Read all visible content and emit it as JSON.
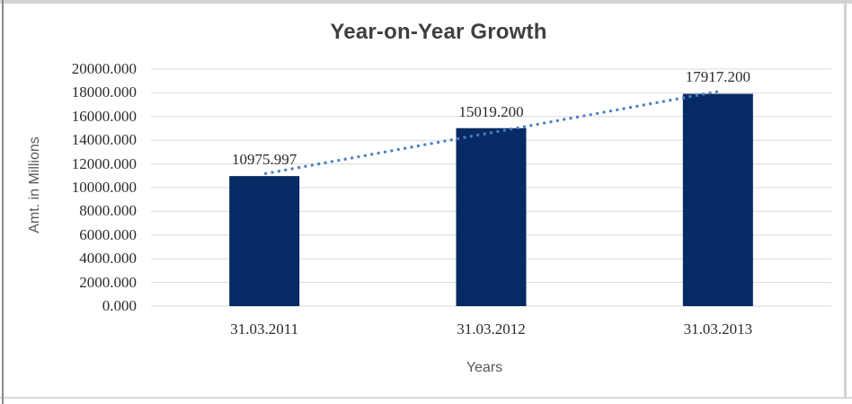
{
  "chart_data": {
    "type": "bar",
    "title": "Year-on-Year Growth",
    "xlabel": "Years",
    "ylabel": "Amt. in Millions",
    "categories": [
      "31.03.2011",
      "31.03.2012",
      "31.03.2013"
    ],
    "values": [
      10975.997,
      15019.2,
      17917.2
    ],
    "data_labels": [
      "10975.997",
      "15019.200",
      "17917.200"
    ],
    "ylim": [
      0,
      20000
    ],
    "ytick_step": 2000,
    "ytick_labels": [
      "0.000",
      "2000.000",
      "4000.000",
      "6000.000",
      "8000.000",
      "10000.000",
      "12000.000",
      "14000.000",
      "16000.000",
      "18000.000",
      "20000.000"
    ],
    "grid": true,
    "legend": false,
    "trendline": {
      "type": "linear",
      "style": "dotted",
      "color": "#4A80C0"
    },
    "colors": {
      "bar": "#062A64",
      "gridline": "#D9D9D9",
      "title": "#3F3F3F",
      "axis_title": "#595959",
      "tick_label": "#2B2B2B",
      "data_label": "#2B2B2B"
    }
  }
}
